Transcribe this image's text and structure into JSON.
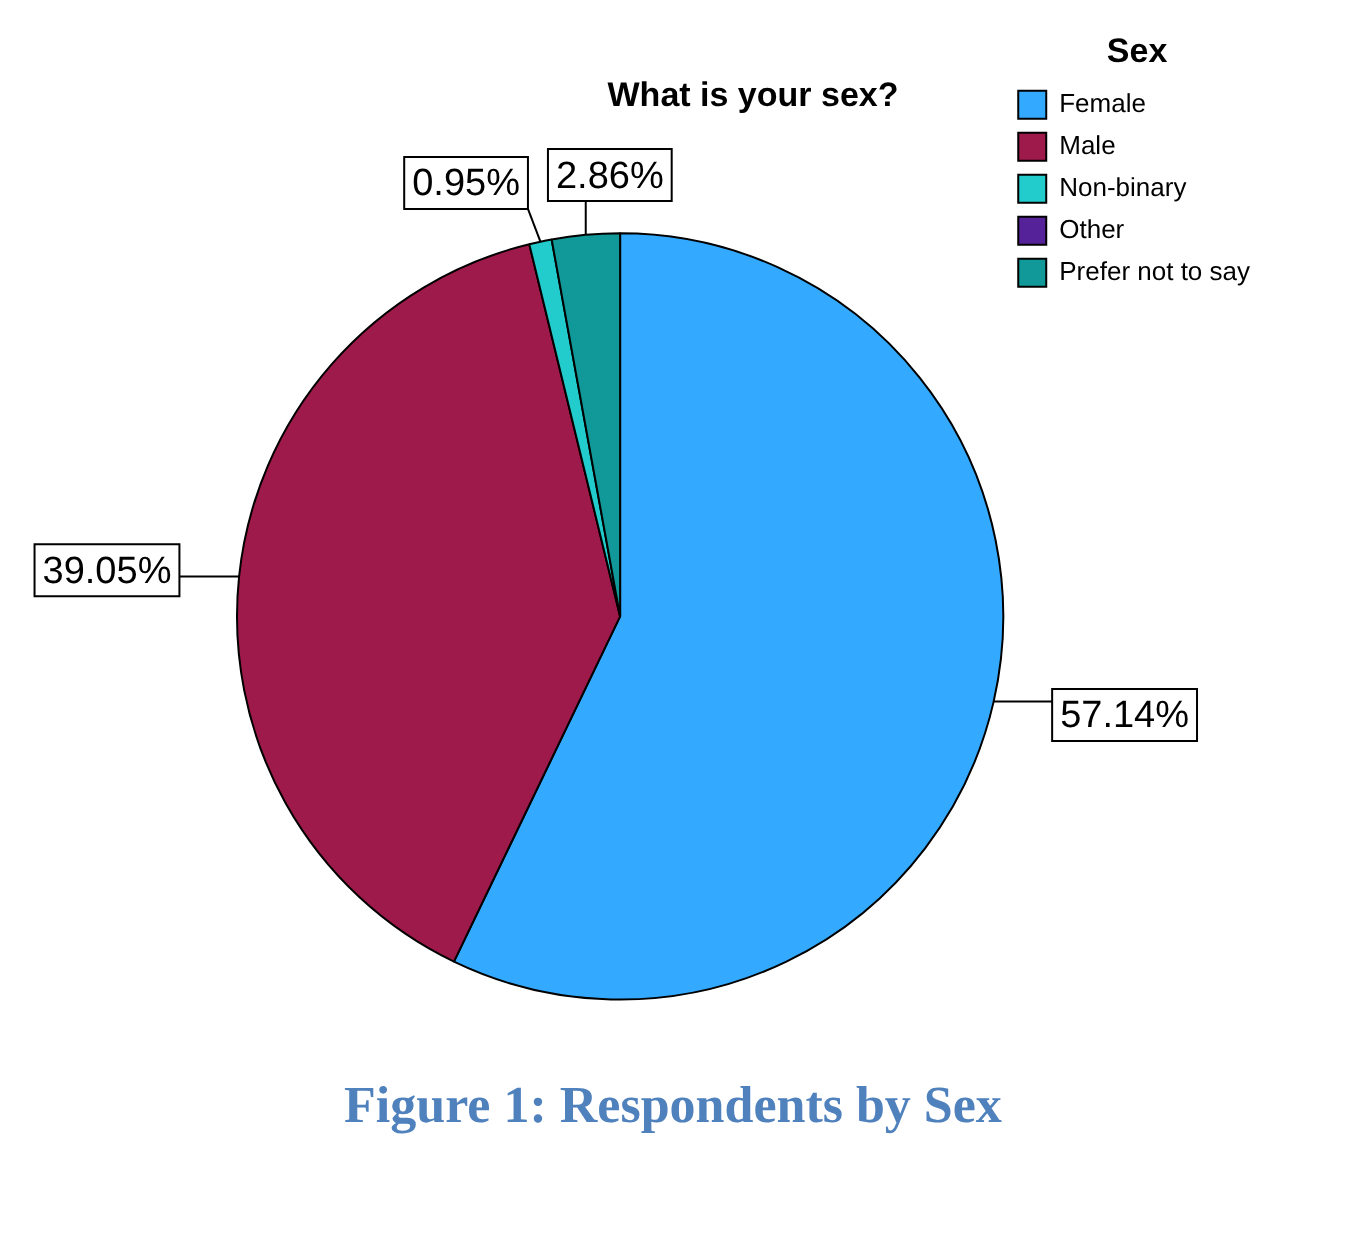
{
  "chart_data": {
    "type": "pie",
    "title": "What is your sex?",
    "legend_title": "Sex",
    "legend": "top right",
    "categories": [
      "Female",
      "Male",
      "Non-binary",
      "Other",
      "Prefer not to say"
    ],
    "values": [
      57.14,
      39.05,
      0.95,
      0,
      2.86
    ],
    "value_labels": [
      "57.14%",
      "39.05%",
      "0.95%",
      null,
      "2.86%"
    ],
    "colors": [
      "#33aaff",
      "#9e1a4a",
      "#22cccc",
      "#552299",
      "#119999"
    ],
    "annotations": [
      "Figure 1: Respondents by Sex"
    ]
  }
}
